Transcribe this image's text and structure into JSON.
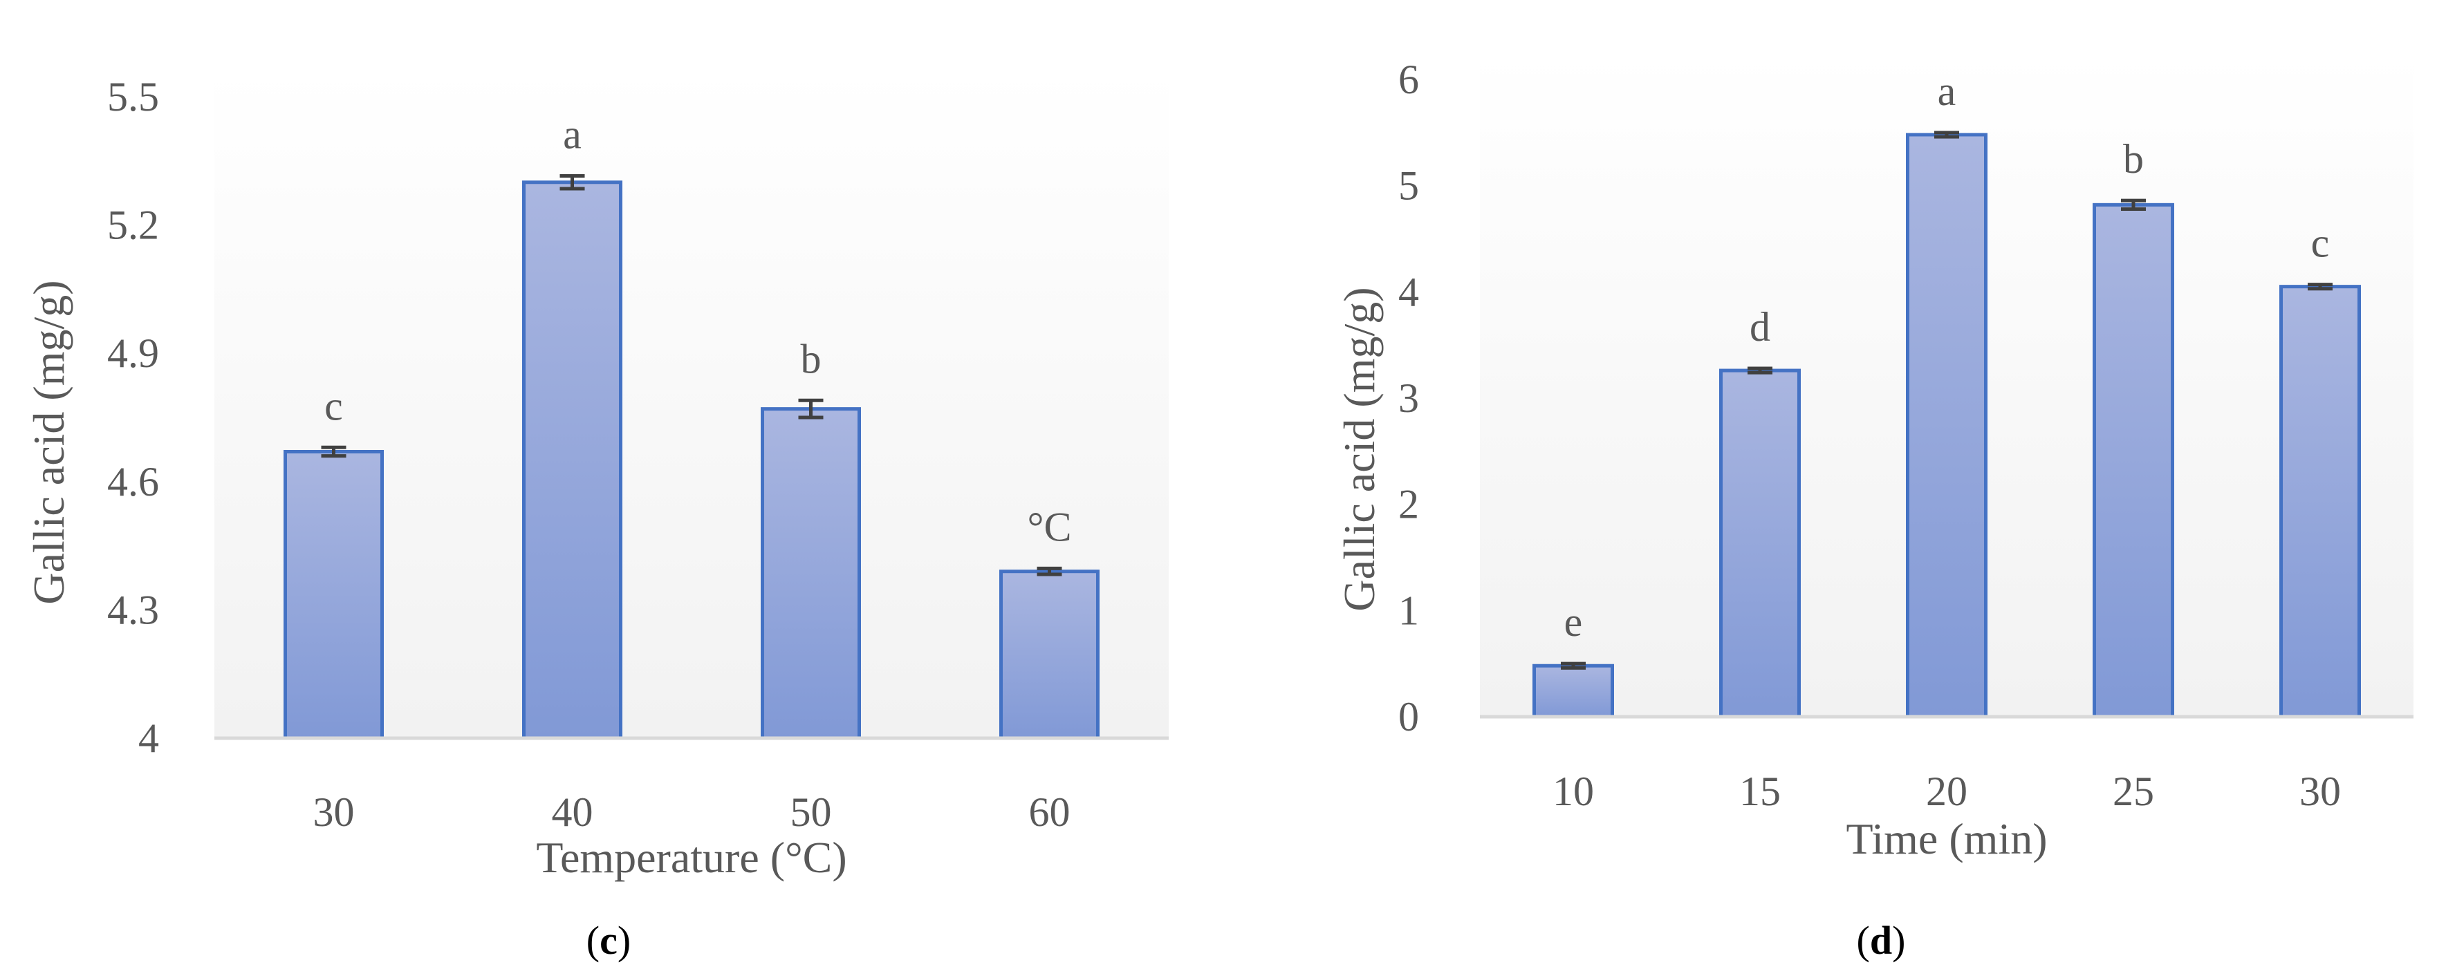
{
  "colors": {
    "bar_fill_top": "#aab6e0",
    "bar_fill_bottom": "#8199d6",
    "bar_stroke": "#4472c4",
    "axis_line": "#d9d9d9",
    "error_bar": "#404040",
    "text": "#595959",
    "plot_bg_bottom": "#f2f2f2"
  },
  "chart_data": [
    {
      "type": "bar",
      "panel_label": "c",
      "panel_label_open": "(",
      "panel_label_close": ")",
      "title": "",
      "xlabel": "Temperature (°C)",
      "ylabel": "Gallic acid (mg/g)",
      "categories": [
        "30",
        "40",
        "50",
        "60"
      ],
      "values": [
        4.67,
        5.3,
        4.77,
        4.39
      ],
      "errors": [
        0.01,
        0.015,
        0.02,
        0.007
      ],
      "letters": [
        "c",
        "a",
        "b",
        "°C"
      ],
      "ylim": [
        4,
        5.5
      ],
      "yticks": [
        4,
        4.3,
        4.6,
        4.9,
        5.2,
        5.5
      ],
      "ytick_labels": [
        "4",
        "4.3",
        "4.6",
        "4.9",
        "5.2",
        "5.5"
      ],
      "grid": false,
      "legend": "none"
    },
    {
      "type": "bar",
      "panel_label": "d",
      "panel_label_open": "(",
      "panel_label_close": ")",
      "title": "",
      "xlabel": "Time (min)",
      "ylabel": "Gallic acid (mg/g)",
      "categories": [
        "10",
        "15",
        "20",
        "25",
        "30"
      ],
      "values": [
        0.48,
        3.26,
        5.48,
        4.82,
        4.05
      ],
      "errors": [
        0.02,
        0.02,
        0.02,
        0.04,
        0.02
      ],
      "letters": [
        "e",
        "d",
        "a",
        "b",
        "c"
      ],
      "ylim": [
        0,
        6
      ],
      "yticks": [
        0,
        1,
        2,
        3,
        4,
        5,
        6
      ],
      "ytick_labels": [
        "0",
        "1",
        "2",
        "3",
        "4",
        "5",
        "6"
      ],
      "grid": false,
      "legend": "none"
    }
  ]
}
